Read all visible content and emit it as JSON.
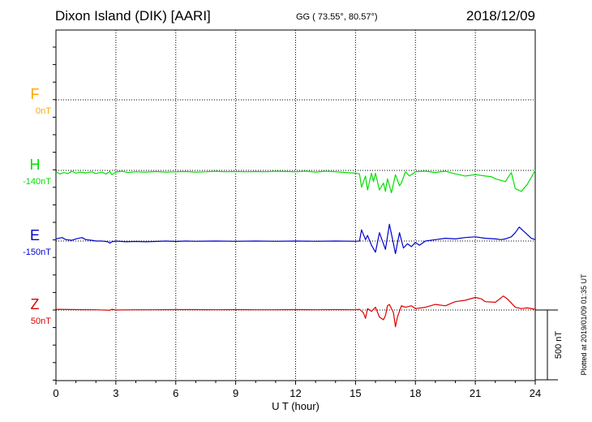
{
  "header": {
    "station": "Dixon Island (DIK)  [AARI]",
    "coords": "GG ( 73.55°,  80.57°)",
    "date": "2018/12/09"
  },
  "footer": {
    "plotted": "Plotted at 2019/01/09 01:35 UT"
  },
  "chart_data": {
    "type": "line",
    "xlabel": "U T (hour)",
    "xlim": [
      0,
      24
    ],
    "x_ticks": [
      "0",
      "3",
      "6",
      "9",
      "12",
      "15",
      "18",
      "21",
      "24"
    ],
    "scale_label": "500 nT",
    "colors": {
      "F": "#ffa500",
      "H": "#00e000",
      "E": "#0000cc",
      "Z": "#dd0000",
      "grid": "#000000"
    },
    "series": [
      {
        "name": "F",
        "baseline": "0nT",
        "points": []
      },
      {
        "name": "H",
        "baseline": "-140nT",
        "points": [
          [
            0.0,
            -10
          ],
          [
            0.2,
            -25
          ],
          [
            0.4,
            -15
          ],
          [
            0.6,
            -22
          ],
          [
            0.8,
            -5
          ],
          [
            1.0,
            -20
          ],
          [
            1.2,
            -12
          ],
          [
            1.5,
            -18
          ],
          [
            1.8,
            -10
          ],
          [
            2.0,
            -22
          ],
          [
            2.3,
            -12
          ],
          [
            2.5,
            -25
          ],
          [
            2.7,
            -8
          ],
          [
            2.8,
            -30
          ],
          [
            3.0,
            -12
          ],
          [
            3.3,
            -5
          ],
          [
            3.6,
            -15
          ],
          [
            4.0,
            -10
          ],
          [
            4.5,
            -12
          ],
          [
            5.0,
            -8
          ],
          [
            5.5,
            -12
          ],
          [
            6.0,
            -10
          ],
          [
            6.5,
            -8
          ],
          [
            7.0,
            -12
          ],
          [
            7.5,
            -10
          ],
          [
            8.0,
            -6
          ],
          [
            8.5,
            -10
          ],
          [
            9.0,
            -8
          ],
          [
            9.5,
            -10
          ],
          [
            10.0,
            -8
          ],
          [
            10.5,
            -10
          ],
          [
            11.0,
            -6
          ],
          [
            11.5,
            -8
          ],
          [
            12.0,
            -10
          ],
          [
            12.5,
            -5
          ],
          [
            13.0,
            -12
          ],
          [
            13.5,
            -5
          ],
          [
            14.0,
            -10
          ],
          [
            14.5,
            -15
          ],
          [
            15.0,
            -20
          ],
          [
            15.2,
            -25
          ],
          [
            15.3,
            -120
          ],
          [
            15.5,
            -40
          ],
          [
            15.6,
            -140
          ],
          [
            15.8,
            -20
          ],
          [
            15.9,
            -80
          ],
          [
            16.0,
            -20
          ],
          [
            16.2,
            -140
          ],
          [
            16.4,
            -90
          ],
          [
            16.5,
            -150
          ],
          [
            16.6,
            -60
          ],
          [
            16.8,
            -160
          ],
          [
            17.0,
            -30
          ],
          [
            17.2,
            -110
          ],
          [
            17.3,
            -90
          ],
          [
            17.5,
            -10
          ],
          [
            17.7,
            -40
          ],
          [
            18.0,
            -10
          ],
          [
            18.5,
            -5
          ],
          [
            19.0,
            -15
          ],
          [
            19.5,
            -5
          ],
          [
            20.0,
            -25
          ],
          [
            20.5,
            -40
          ],
          [
            21.0,
            -30
          ],
          [
            21.5,
            -40
          ],
          [
            21.8,
            -45
          ],
          [
            22.0,
            -60
          ],
          [
            22.5,
            -80
          ],
          [
            22.8,
            -15
          ],
          [
            23.0,
            -130
          ],
          [
            23.3,
            -150
          ],
          [
            23.6,
            -100
          ],
          [
            24.0,
            0
          ]
        ]
      },
      {
        "name": "E",
        "baseline": "-150nT",
        "points": [
          [
            0.0,
            15
          ],
          [
            0.3,
            25
          ],
          [
            0.5,
            10
          ],
          [
            0.8,
            5
          ],
          [
            1.0,
            15
          ],
          [
            1.3,
            25
          ],
          [
            1.5,
            10
          ],
          [
            1.8,
            5
          ],
          [
            2.0,
            0
          ],
          [
            2.3,
            0
          ],
          [
            2.6,
            -5
          ],
          [
            2.7,
            -15
          ],
          [
            2.8,
            -5
          ],
          [
            3.0,
            0
          ],
          [
            3.5,
            -5
          ],
          [
            4.0,
            -3
          ],
          [
            4.5,
            -5
          ],
          [
            5.0,
            -3
          ],
          [
            5.5,
            0
          ],
          [
            6.0,
            -3
          ],
          [
            6.5,
            0
          ],
          [
            7.0,
            -2
          ],
          [
            8.0,
            0
          ],
          [
            9.0,
            -2
          ],
          [
            10.0,
            0
          ],
          [
            11.0,
            -2
          ],
          [
            12.0,
            0
          ],
          [
            13.0,
            -2
          ],
          [
            14.0,
            0
          ],
          [
            15.0,
            -2
          ],
          [
            15.2,
            0
          ],
          [
            15.3,
            80
          ],
          [
            15.5,
            10
          ],
          [
            15.6,
            40
          ],
          [
            15.8,
            -30
          ],
          [
            16.0,
            -80
          ],
          [
            16.2,
            60
          ],
          [
            16.5,
            -60
          ],
          [
            16.7,
            120
          ],
          [
            16.9,
            -20
          ],
          [
            17.0,
            -90
          ],
          [
            17.2,
            60
          ],
          [
            17.4,
            -50
          ],
          [
            17.6,
            -20
          ],
          [
            17.8,
            -40
          ],
          [
            18.0,
            -10
          ],
          [
            18.2,
            -30
          ],
          [
            18.5,
            0
          ],
          [
            19.0,
            10
          ],
          [
            19.5,
            20
          ],
          [
            20.0,
            15
          ],
          [
            20.5,
            25
          ],
          [
            21.0,
            30
          ],
          [
            21.5,
            20
          ],
          [
            22.0,
            15
          ],
          [
            22.3,
            10
          ],
          [
            22.5,
            15
          ],
          [
            22.8,
            30
          ],
          [
            23.0,
            60
          ],
          [
            23.2,
            100
          ],
          [
            23.5,
            60
          ],
          [
            23.8,
            20
          ],
          [
            24.0,
            10
          ]
        ]
      },
      {
        "name": "Z",
        "baseline": "50nT",
        "points": [
          [
            0.0,
            5
          ],
          [
            1.0,
            3
          ],
          [
            2.0,
            2
          ],
          [
            2.7,
            -2
          ],
          [
            2.8,
            5
          ],
          [
            3.0,
            0
          ],
          [
            4.0,
            2
          ],
          [
            5.0,
            2
          ],
          [
            6.0,
            3
          ],
          [
            7.0,
            3
          ],
          [
            8.0,
            2
          ],
          [
            9.0,
            3
          ],
          [
            10.0,
            2
          ],
          [
            11.0,
            2
          ],
          [
            12.0,
            3
          ],
          [
            13.0,
            2
          ],
          [
            14.0,
            3
          ],
          [
            15.0,
            2
          ],
          [
            15.2,
            5
          ],
          [
            15.4,
            -20
          ],
          [
            15.5,
            -60
          ],
          [
            15.6,
            10
          ],
          [
            15.8,
            -10
          ],
          [
            16.0,
            20
          ],
          [
            16.2,
            -50
          ],
          [
            16.4,
            -70
          ],
          [
            16.5,
            -40
          ],
          [
            16.6,
            30
          ],
          [
            16.7,
            40
          ],
          [
            16.9,
            -20
          ],
          [
            17.0,
            -120
          ],
          [
            17.1,
            -50
          ],
          [
            17.3,
            30
          ],
          [
            17.5,
            20
          ],
          [
            17.8,
            30
          ],
          [
            18.0,
            10
          ],
          [
            18.5,
            20
          ],
          [
            19.0,
            40
          ],
          [
            19.5,
            30
          ],
          [
            20.0,
            60
          ],
          [
            20.5,
            70
          ],
          [
            21.0,
            90
          ],
          [
            21.3,
            80
          ],
          [
            21.5,
            60
          ],
          [
            22.0,
            55
          ],
          [
            22.4,
            100
          ],
          [
            22.6,
            80
          ],
          [
            23.0,
            20
          ],
          [
            23.3,
            10
          ],
          [
            23.6,
            15
          ],
          [
            24.0,
            5
          ]
        ]
      }
    ]
  }
}
